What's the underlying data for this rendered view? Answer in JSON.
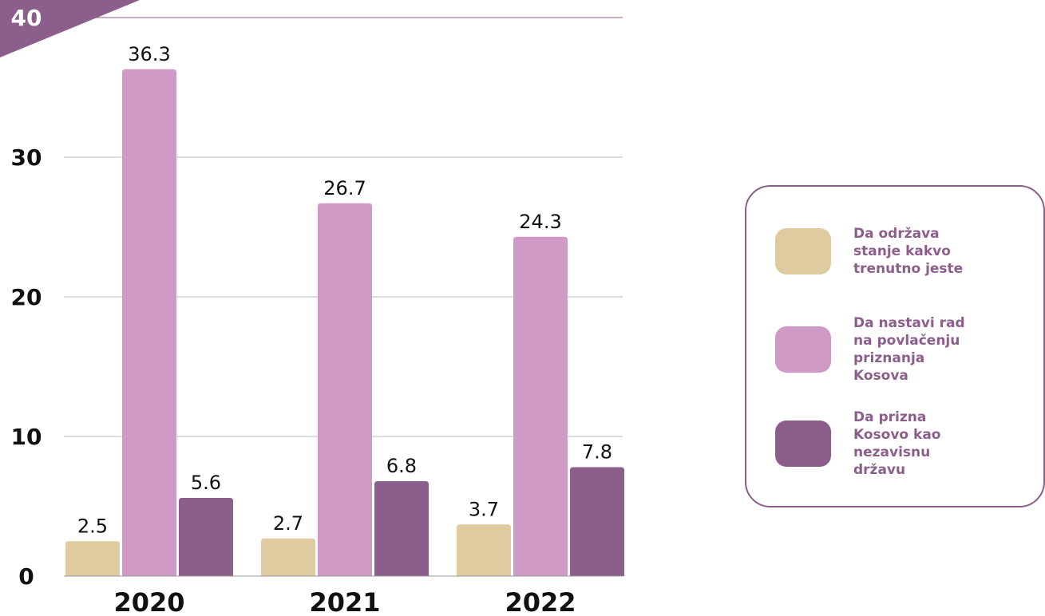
{
  "chart_data": {
    "type": "bar",
    "categories": [
      "2020",
      "2021",
      "2022"
    ],
    "series": [
      {
        "name": "Da održava stanje kakvo trenutno jeste",
        "color": "#e0cba0",
        "values": [
          2.5,
          2.7,
          3.7
        ]
      },
      {
        "name": "Da nastavi rad na povlačenju priznanja Kosova",
        "color": "#d09ac6",
        "values": [
          36.3,
          26.7,
          24.3
        ]
      },
      {
        "name": "Da prizna Kosovo kao nezavisnu državu",
        "color": "#8b5e8b",
        "values": [
          5.6,
          6.8,
          7.8
        ]
      }
    ],
    "ylim": [
      0,
      40
    ],
    "yticks": [
      0,
      10,
      20,
      30,
      40
    ],
    "grid": true
  }
}
